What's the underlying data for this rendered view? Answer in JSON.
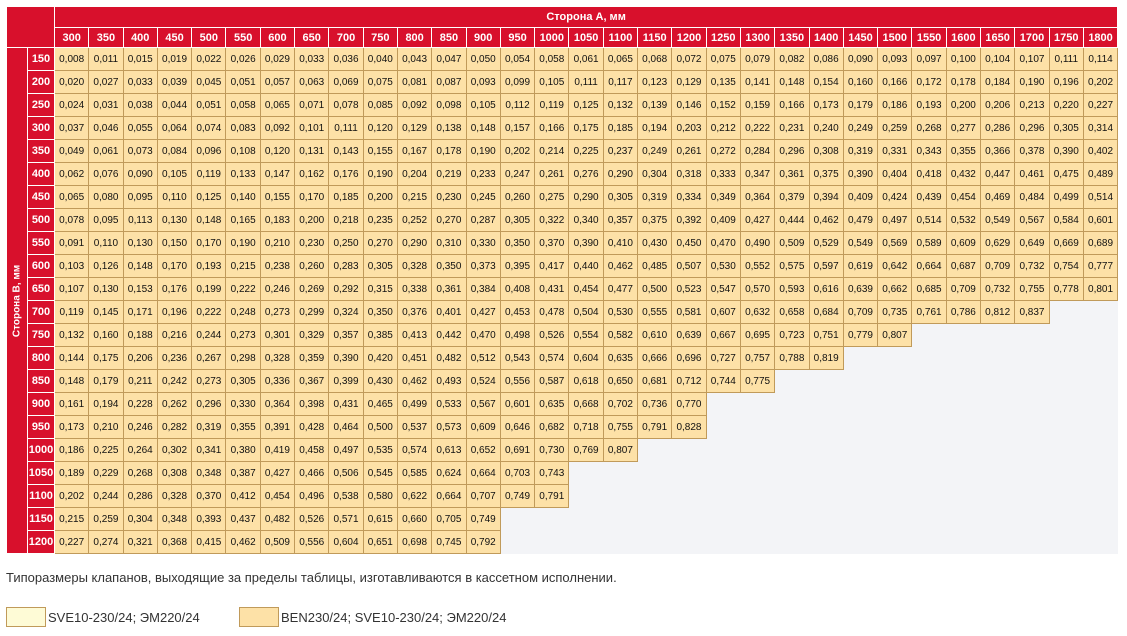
{
  "table": {
    "header_a": "Сторона А, мм",
    "header_b": "Сторона В, мм",
    "cols": [
      "300",
      "350",
      "400",
      "450",
      "500",
      "550",
      "600",
      "650",
      "700",
      "750",
      "800",
      "850",
      "900",
      "950",
      "1000",
      "1050",
      "1100",
      "1150",
      "1200",
      "1250",
      "1300",
      "1350",
      "1400",
      "1450",
      "1500",
      "1550",
      "1600",
      "1650",
      "1700",
      "1750",
      "1800"
    ],
    "rows": [
      {
        "label": "150",
        "values": [
          "0,008",
          "0,011",
          "0,015",
          "0,019",
          "0,022",
          "0,026",
          "0,029",
          "0,033",
          "0,036",
          "0,040",
          "0,043",
          "0,047",
          "0,050",
          "0,054",
          "0,058",
          "0,061",
          "0,065",
          "0,068",
          "0,072",
          "0,075",
          "0,079",
          "0,082",
          "0,086",
          "0,090",
          "0,093",
          "0,097",
          "0,100",
          "0,104",
          "0,107",
          "0,111",
          "0,114"
        ]
      },
      {
        "label": "200",
        "values": [
          "0,020",
          "0,027",
          "0,033",
          "0,039",
          "0,045",
          "0,051",
          "0,057",
          "0,063",
          "0,069",
          "0,075",
          "0,081",
          "0,087",
          "0,093",
          "0,099",
          "0,105",
          "0,111",
          "0,117",
          "0,123",
          "0,129",
          "0,135",
          "0,141",
          "0,148",
          "0,154",
          "0,160",
          "0,166",
          "0,172",
          "0,178",
          "0,184",
          "0,190",
          "0,196",
          "0,202"
        ]
      },
      {
        "label": "250",
        "values": [
          "0,024",
          "0,031",
          "0,038",
          "0,044",
          "0,051",
          "0,058",
          "0,065",
          "0,071",
          "0,078",
          "0,085",
          "0,092",
          "0,098",
          "0,105",
          "0,112",
          "0,119",
          "0,125",
          "0,132",
          "0,139",
          "0,146",
          "0,152",
          "0,159",
          "0,166",
          "0,173",
          "0,179",
          "0,186",
          "0,193",
          "0,200",
          "0,206",
          "0,213",
          "0,220",
          "0,227"
        ]
      },
      {
        "label": "300",
        "values": [
          "0,037",
          "0,046",
          "0,055",
          "0,064",
          "0,074",
          "0,083",
          "0,092",
          "0,101",
          "0,111",
          "0,120",
          "0,129",
          "0,138",
          "0,148",
          "0,157",
          "0,166",
          "0,175",
          "0,185",
          "0,194",
          "0,203",
          "0,212",
          "0,222",
          "0,231",
          "0,240",
          "0,249",
          "0,259",
          "0,268",
          "0,277",
          "0,286",
          "0,296",
          "0,305",
          "0,314"
        ]
      },
      {
        "label": "350",
        "values": [
          "0,049",
          "0,061",
          "0,073",
          "0,084",
          "0,096",
          "0,108",
          "0,120",
          "0,131",
          "0,143",
          "0,155",
          "0,167",
          "0,178",
          "0,190",
          "0,202",
          "0,214",
          "0,225",
          "0,237",
          "0,249",
          "0,261",
          "0,272",
          "0,284",
          "0,296",
          "0,308",
          "0,319",
          "0,331",
          "0,343",
          "0,355",
          "0,366",
          "0,378",
          "0,390",
          "0,402"
        ]
      },
      {
        "label": "400",
        "values": [
          "0,062",
          "0,076",
          "0,090",
          "0,105",
          "0,119",
          "0,133",
          "0,147",
          "0,162",
          "0,176",
          "0,190",
          "0,204",
          "0,219",
          "0,233",
          "0,247",
          "0,261",
          "0,276",
          "0,290",
          "0,304",
          "0,318",
          "0,333",
          "0,347",
          "0,361",
          "0,375",
          "0,390",
          "0,404",
          "0,418",
          "0,432",
          "0,447",
          "0,461",
          "0,475",
          "0,489"
        ]
      },
      {
        "label": "450",
        "values": [
          "0,065",
          "0,080",
          "0,095",
          "0,110",
          "0,125",
          "0,140",
          "0,155",
          "0,170",
          "0,185",
          "0,200",
          "0,215",
          "0,230",
          "0,245",
          "0,260",
          "0,275",
          "0,290",
          "0,305",
          "0,319",
          "0,334",
          "0,349",
          "0,364",
          "0,379",
          "0,394",
          "0,409",
          "0,424",
          "0,439",
          "0,454",
          "0,469",
          "0,484",
          "0,499",
          "0,514"
        ]
      },
      {
        "label": "500",
        "values": [
          "0,078",
          "0,095",
          "0,113",
          "0,130",
          "0,148",
          "0,165",
          "0,183",
          "0,200",
          "0,218",
          "0,235",
          "0,252",
          "0,270",
          "0,287",
          "0,305",
          "0,322",
          "0,340",
          "0,357",
          "0,375",
          "0,392",
          "0,409",
          "0,427",
          "0,444",
          "0,462",
          "0,479",
          "0,497",
          "0,514",
          "0,532",
          "0,549",
          "0,567",
          "0,584",
          "0,601"
        ]
      },
      {
        "label": "550",
        "values": [
          "0,091",
          "0,110",
          "0,130",
          "0,150",
          "0,170",
          "0,190",
          "0,210",
          "0,230",
          "0,250",
          "0,270",
          "0,290",
          "0,310",
          "0,330",
          "0,350",
          "0,370",
          "0,390",
          "0,410",
          "0,430",
          "0,450",
          "0,470",
          "0,490",
          "0,509",
          "0,529",
          "0,549",
          "0,569",
          "0,589",
          "0,609",
          "0,629",
          "0,649",
          "0,669",
          "0,689"
        ]
      },
      {
        "label": "600",
        "values": [
          "0,103",
          "0,126",
          "0,148",
          "0,170",
          "0,193",
          "0,215",
          "0,238",
          "0,260",
          "0,283",
          "0,305",
          "0,328",
          "0,350",
          "0,373",
          "0,395",
          "0,417",
          "0,440",
          "0,462",
          "0,485",
          "0,507",
          "0,530",
          "0,552",
          "0,575",
          "0,597",
          "0,619",
          "0,642",
          "0,664",
          "0,687",
          "0,709",
          "0,732",
          "0,754",
          "0,777"
        ]
      },
      {
        "label": "650",
        "values": [
          "0,107",
          "0,130",
          "0,153",
          "0,176",
          "0,199",
          "0,222",
          "0,246",
          "0,269",
          "0,292",
          "0,315",
          "0,338",
          "0,361",
          "0,384",
          "0,408",
          "0,431",
          "0,454",
          "0,477",
          "0,500",
          "0,523",
          "0,547",
          "0,570",
          "0,593",
          "0,616",
          "0,639",
          "0,662",
          "0,685",
          "0,709",
          "0,732",
          "0,755",
          "0,778",
          "0,801"
        ]
      },
      {
        "label": "700",
        "values": [
          "0,119",
          "0,145",
          "0,171",
          "0,196",
          "0,222",
          "0,248",
          "0,273",
          "0,299",
          "0,324",
          "0,350",
          "0,376",
          "0,401",
          "0,427",
          "0,453",
          "0,478",
          "0,504",
          "0,530",
          "0,555",
          "0,581",
          "0,607",
          "0,632",
          "0,658",
          "0,684",
          "0,709",
          "0,735",
          "0,761",
          "0,786",
          "0,812",
          "0,837"
        ]
      },
      {
        "label": "750",
        "values": [
          "0,132",
          "0,160",
          "0,188",
          "0,216",
          "0,244",
          "0,273",
          "0,301",
          "0,329",
          "0,357",
          "0,385",
          "0,413",
          "0,442",
          "0,470",
          "0,498",
          "0,526",
          "0,554",
          "0,582",
          "0,610",
          "0,639",
          "0,667",
          "0,695",
          "0,723",
          "0,751",
          "0,779",
          "0,807"
        ]
      },
      {
        "label": "800",
        "values": [
          "0,144",
          "0,175",
          "0,206",
          "0,236",
          "0,267",
          "0,298",
          "0,328",
          "0,359",
          "0,390",
          "0,420",
          "0,451",
          "0,482",
          "0,512",
          "0,543",
          "0,574",
          "0,604",
          "0,635",
          "0,666",
          "0,696",
          "0,727",
          "0,757",
          "0,788",
          "0,819"
        ]
      },
      {
        "label": "850",
        "values": [
          "0,148",
          "0,179",
          "0,211",
          "0,242",
          "0,273",
          "0,305",
          "0,336",
          "0,367",
          "0,399",
          "0,430",
          "0,462",
          "0,493",
          "0,524",
          "0,556",
          "0,587",
          "0,618",
          "0,650",
          "0,681",
          "0,712",
          "0,744",
          "0,775"
        ]
      },
      {
        "label": "900",
        "values": [
          "0,161",
          "0,194",
          "0,228",
          "0,262",
          "0,296",
          "0,330",
          "0,364",
          "0,398",
          "0,431",
          "0,465",
          "0,499",
          "0,533",
          "0,567",
          "0,601",
          "0,635",
          "0,668",
          "0,702",
          "0,736",
          "0,770"
        ]
      },
      {
        "label": "950",
        "values": [
          "0,173",
          "0,210",
          "0,246",
          "0,282",
          "0,319",
          "0,355",
          "0,391",
          "0,428",
          "0,464",
          "0,500",
          "0,537",
          "0,573",
          "0,609",
          "0,646",
          "0,682",
          "0,718",
          "0,755",
          "0,791",
          "0,828"
        ]
      },
      {
        "label": "1000",
        "values": [
          "0,186",
          "0,225",
          "0,264",
          "0,302",
          "0,341",
          "0,380",
          "0,419",
          "0,458",
          "0,497",
          "0,535",
          "0,574",
          "0,613",
          "0,652",
          "0,691",
          "0,730",
          "0,769",
          "0,807"
        ]
      },
      {
        "label": "1050",
        "values": [
          "0,189",
          "0,229",
          "0,268",
          "0,308",
          "0,348",
          "0,387",
          "0,427",
          "0,466",
          "0,506",
          "0,545",
          "0,585",
          "0,624",
          "0,664",
          "0,703",
          "0,743"
        ]
      },
      {
        "label": "1100",
        "values": [
          "0,202",
          "0,244",
          "0,286",
          "0,328",
          "0,370",
          "0,412",
          "0,454",
          "0,496",
          "0,538",
          "0,580",
          "0,622",
          "0,664",
          "0,707",
          "0,749",
          "0,791"
        ]
      },
      {
        "label": "1150",
        "values": [
          "0,215",
          "0,259",
          "0,304",
          "0,348",
          "0,393",
          "0,437",
          "0,482",
          "0,526",
          "0,571",
          "0,615",
          "0,660",
          "0,705",
          "0,749"
        ]
      },
      {
        "label": "1200",
        "values": [
          "0,227",
          "0,274",
          "0,321",
          "0,368",
          "0,415",
          "0,462",
          "0,509",
          "0,556",
          "0,604",
          "0,651",
          "0,698",
          "0,745",
          "0,792"
        ]
      }
    ]
  },
  "note": "Типоразмеры клапанов, выходящие за пределы таблицы, изготавливаются в кассетном исполнении.",
  "legend": [
    {
      "label": "SVE10-230/24; ЭМ220/24",
      "color": "#fefbd6"
    },
    {
      "label": "BEN230/24; SVE10-230/24; ЭМ220/24",
      "color": "#fde1a7"
    }
  ],
  "colors": {
    "header": "#d8102c",
    "cell": "#fde1a7",
    "empty": "#f3f4f7"
  }
}
